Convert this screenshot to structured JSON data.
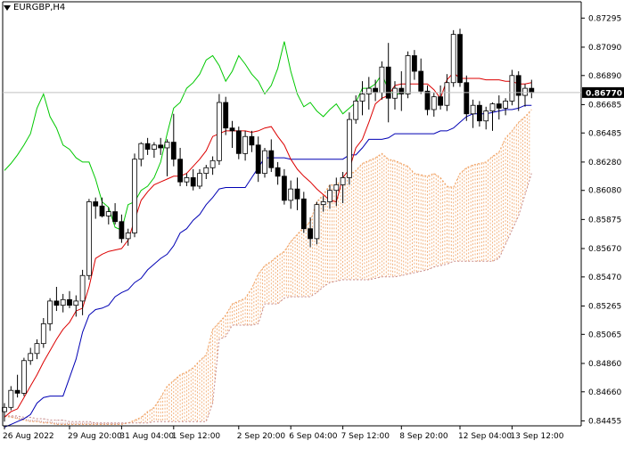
{
  "chart_data": {
    "type": "candlestick",
    "symbol": "EURGBP,H4",
    "current_price": "0.86770",
    "ylim": [
      0.8442,
      0.8741
    ],
    "y_ticks": [
      "0.87295",
      "0.87090",
      "0.86890",
      "0.86685",
      "0.86485",
      "0.86280",
      "0.86080",
      "0.85875",
      "0.85670",
      "0.85470",
      "0.85265",
      "0.85065",
      "0.84860",
      "0.84660",
      "0.84455"
    ],
    "x_ticks": [
      {
        "label": "26 Aug 2022",
        "i": 0
      },
      {
        "label": "29 Aug 20:00",
        "i": 10
      },
      {
        "label": "31 Aug 04:00",
        "i": 18
      },
      {
        "label": "1 Sep 12:00",
        "i": 26
      },
      {
        "label": "2 Sep 20:00",
        "i": 36
      },
      {
        "label": "6 Sep 04:00",
        "i": 44
      },
      {
        "label": "7 Sep 12:00",
        "i": 52
      },
      {
        "label": "8 Sep 20:00",
        "i": 61
      },
      {
        "label": "12 Sep 04:00",
        "i": 70
      },
      {
        "label": "13 Sep 12:00",
        "i": 78
      }
    ],
    "candles": [
      [
        0.8452,
        0.8458,
        0.8445,
        0.8455
      ],
      [
        0.8455,
        0.847,
        0.8453,
        0.8467
      ],
      [
        0.8467,
        0.8478,
        0.8462,
        0.8465
      ],
      [
        0.8465,
        0.849,
        0.8463,
        0.8488
      ],
      [
        0.8488,
        0.8497,
        0.8485,
        0.8493
      ],
      [
        0.8493,
        0.8503,
        0.8489,
        0.85
      ],
      [
        0.85,
        0.8518,
        0.8497,
        0.8514
      ],
      [
        0.8514,
        0.8532,
        0.8509,
        0.853
      ],
      [
        0.853,
        0.854,
        0.8523,
        0.8527
      ],
      [
        0.8527,
        0.8535,
        0.8522,
        0.8531
      ],
      [
        0.8531,
        0.8537,
        0.8525,
        0.8527
      ],
      [
        0.8527,
        0.8534,
        0.8519,
        0.853
      ],
      [
        0.853,
        0.8552,
        0.852,
        0.8548
      ],
      [
        0.8548,
        0.8602,
        0.8545,
        0.86
      ],
      [
        0.86,
        0.8603,
        0.8588,
        0.8597
      ],
      [
        0.8597,
        0.8603,
        0.8589,
        0.859
      ],
      [
        0.859,
        0.8596,
        0.8584,
        0.8593
      ],
      [
        0.8593,
        0.8599,
        0.8584,
        0.8586
      ],
      [
        0.8586,
        0.8591,
        0.8571,
        0.8574
      ],
      [
        0.8574,
        0.8581,
        0.8569,
        0.8578
      ],
      [
        0.8578,
        0.8634,
        0.8575,
        0.863
      ],
      [
        0.863,
        0.8642,
        0.8625,
        0.8641
      ],
      [
        0.8641,
        0.8645,
        0.8633,
        0.8637
      ],
      [
        0.8637,
        0.8642,
        0.8631,
        0.864
      ],
      [
        0.864,
        0.8645,
        0.8633,
        0.8638
      ],
      [
        0.8638,
        0.8644,
        0.8618,
        0.8642
      ],
      [
        0.8642,
        0.8662,
        0.8625,
        0.863
      ],
      [
        0.863,
        0.8638,
        0.8611,
        0.8614
      ],
      [
        0.8614,
        0.862,
        0.8611,
        0.8617
      ],
      [
        0.8617,
        0.8623,
        0.8608,
        0.8611
      ],
      [
        0.8611,
        0.8623,
        0.8609,
        0.862
      ],
      [
        0.862,
        0.8626,
        0.8616,
        0.8624
      ],
      [
        0.8624,
        0.8632,
        0.8619,
        0.8629
      ],
      [
        0.8629,
        0.8676,
        0.8626,
        0.867
      ],
      [
        0.867,
        0.8674,
        0.8647,
        0.8652
      ],
      [
        0.8652,
        0.8657,
        0.8638,
        0.865
      ],
      [
        0.865,
        0.8653,
        0.863,
        0.8634
      ],
      [
        0.8634,
        0.865,
        0.8629,
        0.8646
      ],
      [
        0.8646,
        0.865,
        0.8635,
        0.864
      ],
      [
        0.864,
        0.8646,
        0.8614,
        0.862
      ],
      [
        0.862,
        0.8638,
        0.8617,
        0.8636
      ],
      [
        0.8636,
        0.8644,
        0.8621,
        0.8624
      ],
      [
        0.8624,
        0.8628,
        0.8612,
        0.8618
      ],
      [
        0.8618,
        0.8623,
        0.8598,
        0.8601
      ],
      [
        0.8601,
        0.8615,
        0.8595,
        0.8609
      ],
      [
        0.8609,
        0.8617,
        0.8594,
        0.8602
      ],
      [
        0.8602,
        0.8607,
        0.8578,
        0.8581
      ],
      [
        0.8581,
        0.8589,
        0.8568,
        0.8574
      ],
      [
        0.8574,
        0.86,
        0.857,
        0.8598
      ],
      [
        0.8598,
        0.8604,
        0.8593,
        0.86
      ],
      [
        0.86,
        0.8612,
        0.8595,
        0.8608
      ],
      [
        0.8608,
        0.8617,
        0.8597,
        0.8612
      ],
      [
        0.8612,
        0.8621,
        0.8599,
        0.8617
      ],
      [
        0.8617,
        0.8663,
        0.8612,
        0.8658
      ],
      [
        0.8658,
        0.8675,
        0.8655,
        0.8671
      ],
      [
        0.8671,
        0.8685,
        0.8661,
        0.8676
      ],
      [
        0.8676,
        0.8688,
        0.8665,
        0.868
      ],
      [
        0.868,
        0.8686,
        0.8671,
        0.8677
      ],
      [
        0.8677,
        0.8699,
        0.8672,
        0.8695
      ],
      [
        0.8695,
        0.8712,
        0.8656,
        0.8673
      ],
      [
        0.8673,
        0.8685,
        0.8665,
        0.868
      ],
      [
        0.868,
        0.8692,
        0.8664,
        0.8676
      ],
      [
        0.8676,
        0.8706,
        0.8673,
        0.8703
      ],
      [
        0.8703,
        0.8707,
        0.8686,
        0.8692
      ],
      [
        0.8692,
        0.8701,
        0.8676,
        0.8678
      ],
      [
        0.8678,
        0.8682,
        0.8661,
        0.8665
      ],
      [
        0.8665,
        0.8677,
        0.866,
        0.8674
      ],
      [
        0.8674,
        0.8682,
        0.8665,
        0.8668
      ],
      [
        0.8668,
        0.869,
        0.8664,
        0.8684
      ],
      [
        0.8684,
        0.8721,
        0.8681,
        0.8718
      ],
      [
        0.8718,
        0.8722,
        0.8681,
        0.8684
      ],
      [
        0.8684,
        0.8689,
        0.8657,
        0.8662
      ],
      [
        0.8662,
        0.8672,
        0.8652,
        0.8668
      ],
      [
        0.8668,
        0.8671,
        0.8653,
        0.8657
      ],
      [
        0.8657,
        0.8667,
        0.8651,
        0.8664
      ],
      [
        0.8664,
        0.867,
        0.865,
        0.8669
      ],
      [
        0.8669,
        0.8675,
        0.8658,
        0.8666
      ],
      [
        0.8666,
        0.8673,
        0.8661,
        0.8671
      ],
      [
        0.8671,
        0.8693,
        0.8668,
        0.8689
      ],
      [
        0.8689,
        0.8692,
        0.8664,
        0.8675
      ],
      [
        0.8675,
        0.8683,
        0.8667,
        0.868
      ],
      [
        0.868,
        0.8686,
        0.8673,
        0.8677
      ]
    ],
    "series": [
      {
        "role": "chikou",
        "color": "#00c800",
        "values": [
          0.8622,
          0.8627,
          0.8633,
          0.864,
          0.8648,
          0.8666,
          0.8676,
          0.866,
          0.8652,
          0.864,
          0.8637,
          0.8631,
          0.8628,
          0.8628,
          0.8616,
          0.86,
          0.8596,
          0.8582,
          0.858,
          0.8598,
          0.86,
          0.8608,
          0.8611,
          0.8617,
          0.8628,
          0.8648,
          0.8666,
          0.867,
          0.868,
          0.8684,
          0.869,
          0.87,
          0.8703,
          0.8696,
          0.8685,
          0.8692,
          0.8703,
          0.8697,
          0.869,
          0.8685,
          0.8676,
          0.8682,
          0.8694,
          0.8713,
          0.8692,
          0.8676,
          0.8667,
          0.867,
          0.8664,
          0.866,
          0.8665,
          0.8669,
          0.8662,
          0.8666,
          0.867,
          0.868,
          0.868,
          0.8683,
          0.869,
          0.8679,
          0.8675,
          0.8677,
          0.8677
        ]
      },
      {
        "role": "tenkan",
        "color": "#dc0000",
        "values": [
          0.8448,
          0.8452,
          0.8454,
          0.8462,
          0.847,
          0.8478,
          0.8487,
          0.8495,
          0.8503,
          0.851,
          0.8515,
          0.8523,
          0.8525,
          0.854,
          0.856,
          0.8563,
          0.8565,
          0.8566,
          0.8567,
          0.8573,
          0.8587,
          0.8601,
          0.8607,
          0.8612,
          0.8614,
          0.8616,
          0.8618,
          0.8618,
          0.862,
          0.8625,
          0.863,
          0.8636,
          0.8646,
          0.8648,
          0.865,
          0.865,
          0.865,
          0.865,
          0.8649,
          0.865,
          0.8652,
          0.8653,
          0.8646,
          0.864,
          0.863,
          0.8623,
          0.8618,
          0.8614,
          0.8609,
          0.8605,
          0.8601,
          0.86,
          0.8617,
          0.8623,
          0.8638,
          0.8644,
          0.8656,
          0.8669,
          0.8673,
          0.8675,
          0.8682,
          0.8683,
          0.8683,
          0.8683,
          0.8683,
          0.8683,
          0.8679,
          0.8673,
          0.8686,
          0.8691,
          0.8687,
          0.8687,
          0.8687,
          0.8687,
          0.8686,
          0.8686,
          0.8686,
          0.8685,
          0.8685,
          0.8683,
          0.8683,
          0.8684
        ]
      },
      {
        "role": "kijun",
        "color": "#0000b4",
        "values": [
          0.8441,
          0.8443,
          0.8445,
          0.8447,
          0.845,
          0.8458,
          0.8462,
          0.8463,
          0.8463,
          0.8463,
          0.8476,
          0.8489,
          0.8508,
          0.852,
          0.8524,
          0.8525,
          0.8527,
          0.8533,
          0.8536,
          0.8538,
          0.8543,
          0.8546,
          0.8552,
          0.8556,
          0.856,
          0.8563,
          0.8569,
          0.8578,
          0.8581,
          0.8587,
          0.8591,
          0.8598,
          0.8603,
          0.8609,
          0.861,
          0.861,
          0.861,
          0.861,
          0.8617,
          0.8624,
          0.8631,
          0.8631,
          0.8631,
          0.8631,
          0.863,
          0.863,
          0.863,
          0.863,
          0.863,
          0.863,
          0.863,
          0.863,
          0.863,
          0.8633,
          0.8633,
          0.8638,
          0.8644,
          0.8644,
          0.8644,
          0.8645,
          0.8648,
          0.8648,
          0.8648,
          0.8648,
          0.8648,
          0.8648,
          0.8648,
          0.865,
          0.865,
          0.8652,
          0.8656,
          0.866,
          0.8662,
          0.8662,
          0.8662,
          0.8663,
          0.8664,
          0.8665,
          0.8665,
          0.8666,
          0.8668,
          0.8668
        ]
      },
      {
        "role": "senkou_a",
        "color": "#f0a060",
        "values": [
          0.8449,
          0.8448,
          0.8447,
          0.8446,
          0.8445,
          0.8445,
          0.8444,
          0.8444,
          0.8443,
          0.8443,
          0.8443,
          0.8443,
          0.8443,
          0.8443,
          0.8443,
          0.8443,
          0.8443,
          0.8443,
          0.8443,
          0.8444,
          0.8446,
          0.8448,
          0.8452,
          0.8455,
          0.8462,
          0.847,
          0.8474,
          0.8478,
          0.848,
          0.8483,
          0.8488,
          0.8492,
          0.851,
          0.8515,
          0.852,
          0.8528,
          0.853,
          0.8532,
          0.8539,
          0.8549,
          0.8555,
          0.8558,
          0.8562,
          0.8565,
          0.8572,
          0.8577,
          0.8582,
          0.8586,
          0.86,
          0.8605,
          0.8612,
          0.8612,
          0.8616,
          0.8619,
          0.8622,
          0.8627,
          0.8629,
          0.8631,
          0.8634,
          0.863,
          0.8629,
          0.8627,
          0.8625,
          0.862,
          0.8619,
          0.8618,
          0.862,
          0.8617,
          0.8611,
          0.861,
          0.862,
          0.8624,
          0.8626,
          0.8627,
          0.8628,
          0.8632,
          0.8635,
          0.8645,
          0.865,
          0.8656,
          0.866,
          0.8665
        ]
      },
      {
        "role": "senkou_b",
        "color": "#c88c8c",
        "values": [
          0.8449,
          0.8449,
          0.8449,
          0.8448,
          0.8448,
          0.8447,
          0.8447,
          0.8446,
          0.8446,
          0.8446,
          0.8445,
          0.8445,
          0.8445,
          0.8445,
          0.8444,
          0.8444,
          0.8444,
          0.8444,
          0.8444,
          0.8444,
          0.8444,
          0.8444,
          0.8444,
          0.8445,
          0.8445,
          0.8445,
          0.8445,
          0.8445,
          0.8445,
          0.8445,
          0.8445,
          0.8445,
          0.8458,
          0.8503,
          0.8505,
          0.8513,
          0.8513,
          0.8513,
          0.8513,
          0.8514,
          0.8528,
          0.8528,
          0.8528,
          0.8532,
          0.8533,
          0.8533,
          0.8533,
          0.8533,
          0.8536,
          0.854,
          0.8543,
          0.8544,
          0.8545,
          0.8545,
          0.8545,
          0.8545,
          0.8545,
          0.8546,
          0.8547,
          0.8547,
          0.8547,
          0.8548,
          0.8549,
          0.855,
          0.8551,
          0.8552,
          0.8554,
          0.8555,
          0.8556,
          0.8558,
          0.8558,
          0.8558,
          0.8558,
          0.8558,
          0.8558,
          0.8558,
          0.856,
          0.857,
          0.858,
          0.859,
          0.8605,
          0.862
        ]
      }
    ]
  }
}
